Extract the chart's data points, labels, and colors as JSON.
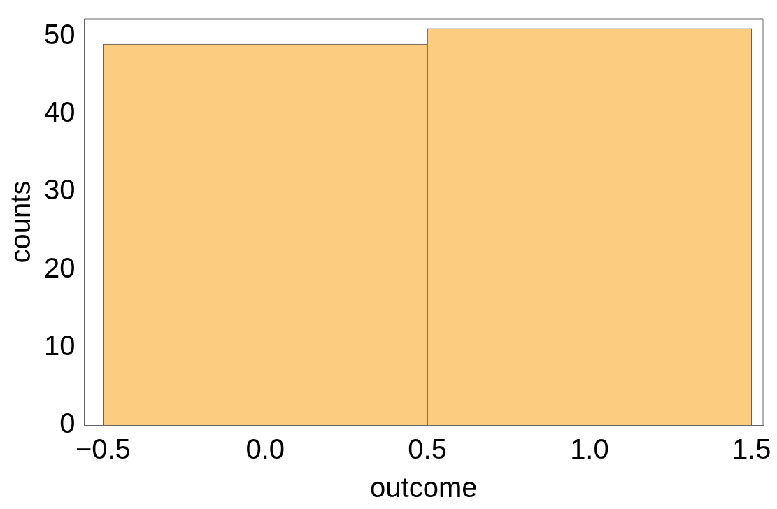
{
  "chart_data": {
    "type": "histogram",
    "xlabel": "outcome",
    "ylabel": "counts",
    "bins": [
      -0.5,
      0.5,
      1.5
    ],
    "values": [
      49,
      51
    ],
    "color": "#fccc80",
    "xlim": [
      -0.558,
      1.535
    ],
    "ylim": [
      0,
      52.25
    ],
    "xticks": [
      {
        "value": -0.5,
        "label": "−0.5"
      },
      {
        "value": 0,
        "label": "0.0"
      },
      {
        "value": 0.5,
        "label": "0.5"
      },
      {
        "value": 1,
        "label": "1.0"
      },
      {
        "value": 1.5,
        "label": "1.5"
      }
    ],
    "yticks": [
      0,
      10,
      20,
      30,
      40,
      50
    ]
  }
}
